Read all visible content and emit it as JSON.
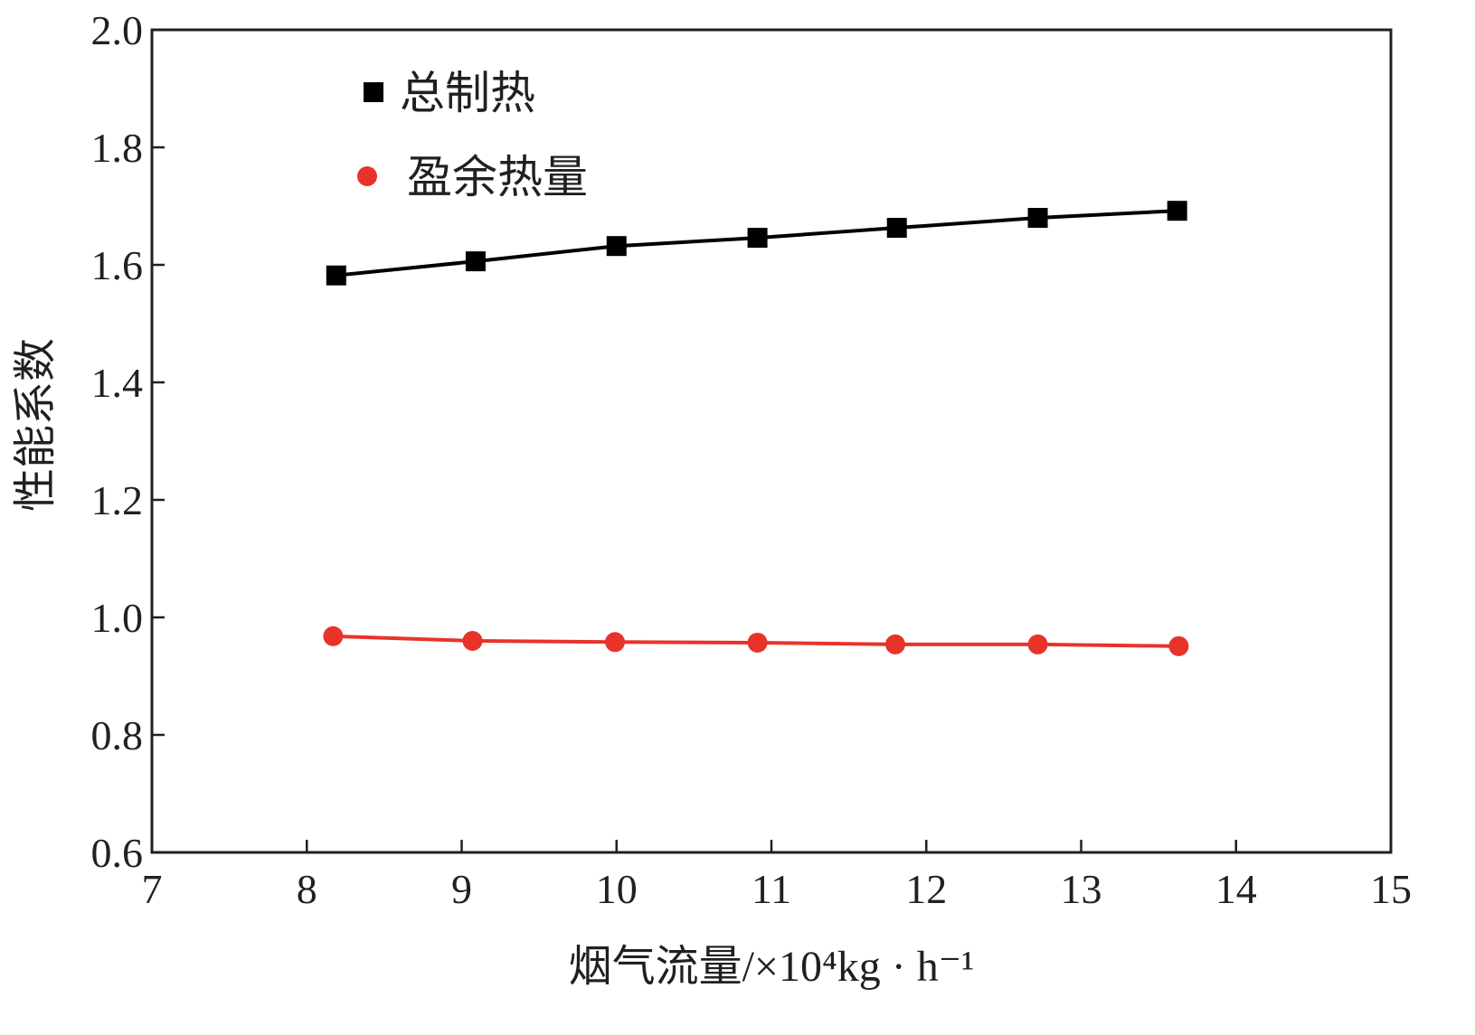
{
  "chart_data": {
    "type": "line",
    "xlabel": "烟气流量/×10⁴kg · h⁻¹",
    "ylabel": "性能系数",
    "xlim": [
      7,
      15
    ],
    "ylim": [
      0.6,
      2.0
    ],
    "xticks": [
      "7",
      "8",
      "9",
      "10",
      "11",
      "12",
      "13",
      "14",
      "15"
    ],
    "yticks": [
      "0.6",
      "0.8",
      "1.0",
      "1.2",
      "1.4",
      "1.6",
      "1.8",
      "2.0"
    ],
    "grid": false,
    "legend_position": "top-left",
    "series": [
      {
        "name": "总制热",
        "color": "#000000",
        "marker": "square",
        "x": [
          8.19,
          9.09,
          10.0,
          10.91,
          11.81,
          12.72,
          13.62
        ],
        "y": [
          1.582,
          1.606,
          1.632,
          1.646,
          1.663,
          1.68,
          1.692
        ]
      },
      {
        "name": "盈余热量",
        "color": "#e8332a",
        "marker": "circle",
        "x": [
          8.17,
          9.07,
          9.99,
          10.91,
          11.8,
          12.72,
          13.63
        ],
        "y": [
          0.968,
          0.96,
          0.958,
          0.957,
          0.954,
          0.954,
          0.951
        ]
      }
    ]
  }
}
